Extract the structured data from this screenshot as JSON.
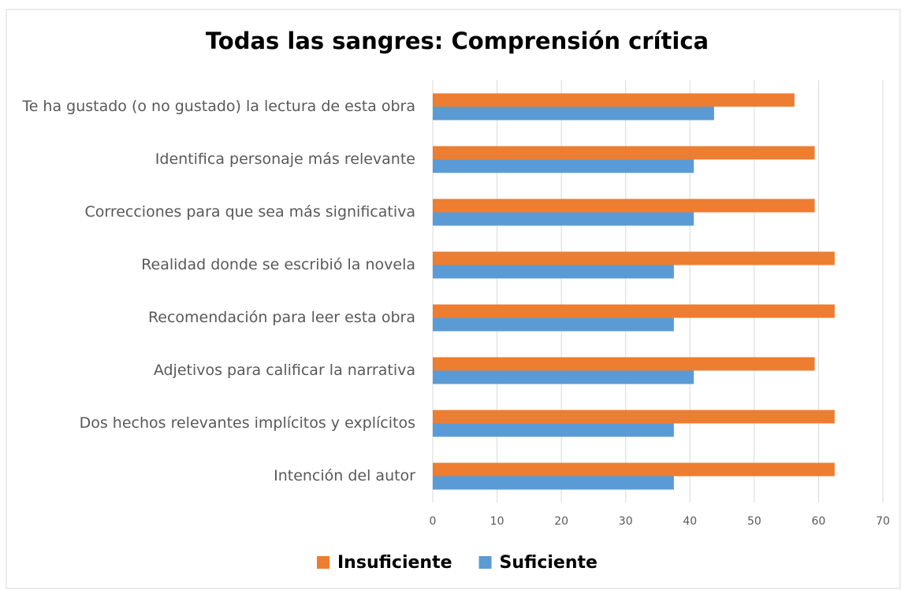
{
  "chart_data": {
    "type": "bar",
    "orientation": "horizontal",
    "title": "Todas las sangres: Comprensión crítica",
    "categories": [
      "Te ha gustado (o no gustado) la lectura de esta obra",
      "Identifica personaje más relevante",
      "Correcciones para que sea más significativa",
      "Realidad donde se escribió la novela",
      "Recomendación para leer esta obra",
      "Adjetivos para calificar la narrativa",
      "Dos hechos relevantes implícitos y explícitos",
      "Intención del autor"
    ],
    "series": [
      {
        "name": "Insuficiente",
        "color": "#ED7D31",
        "values": [
          56.25,
          59.4,
          59.4,
          62.5,
          62.5,
          59.4,
          62.5,
          62.5
        ]
      },
      {
        "name": "Suficiente",
        "color": "#5B9BD5",
        "values": [
          43.75,
          40.6,
          40.6,
          37.5,
          37.5,
          40.6,
          37.5,
          37.5
        ]
      }
    ],
    "xlim": [
      0,
      70
    ],
    "xticks": [
      0,
      10,
      20,
      30,
      40,
      50,
      60,
      70
    ],
    "grid": true,
    "legend": "bottom"
  }
}
